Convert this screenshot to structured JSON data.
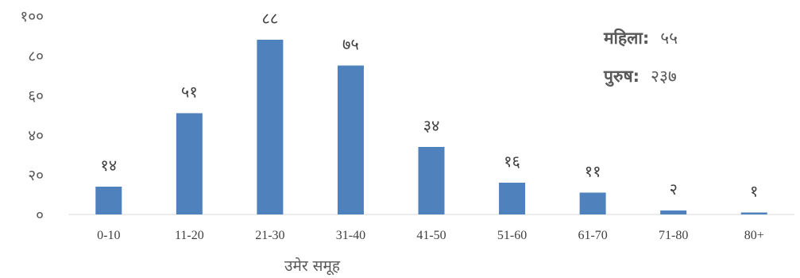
{
  "chart_data": {
    "type": "bar",
    "categories": [
      "0-10",
      "11-20",
      "21-30",
      "31-40",
      "41-50",
      "51-60",
      "61-70",
      "71-80",
      "80+"
    ],
    "values": [
      14,
      51,
      88,
      75,
      34,
      16,
      11,
      2,
      1
    ],
    "data_labels": [
      "१४",
      "५१",
      "८८",
      "७५",
      "३४",
      "१६",
      "११",
      "२",
      "१"
    ],
    "y_ticks": [
      {
        "value": 0,
        "label": "०"
      },
      {
        "value": 20,
        "label": "२०"
      },
      {
        "value": 40,
        "label": "४०"
      },
      {
        "value": 60,
        "label": "६०"
      },
      {
        "value": 80,
        "label": "८०"
      },
      {
        "value": 100,
        "label": "१००"
      }
    ],
    "ylim": [
      0,
      100
    ],
    "xlabel": "उमेर समूह",
    "ylabel": "",
    "title": "",
    "grid": false,
    "bar_color": "#4F81BD"
  },
  "legend": {
    "female_label": "महिला:",
    "female_value": "५५",
    "male_label": "पुरुष:",
    "male_value": "२३७"
  }
}
